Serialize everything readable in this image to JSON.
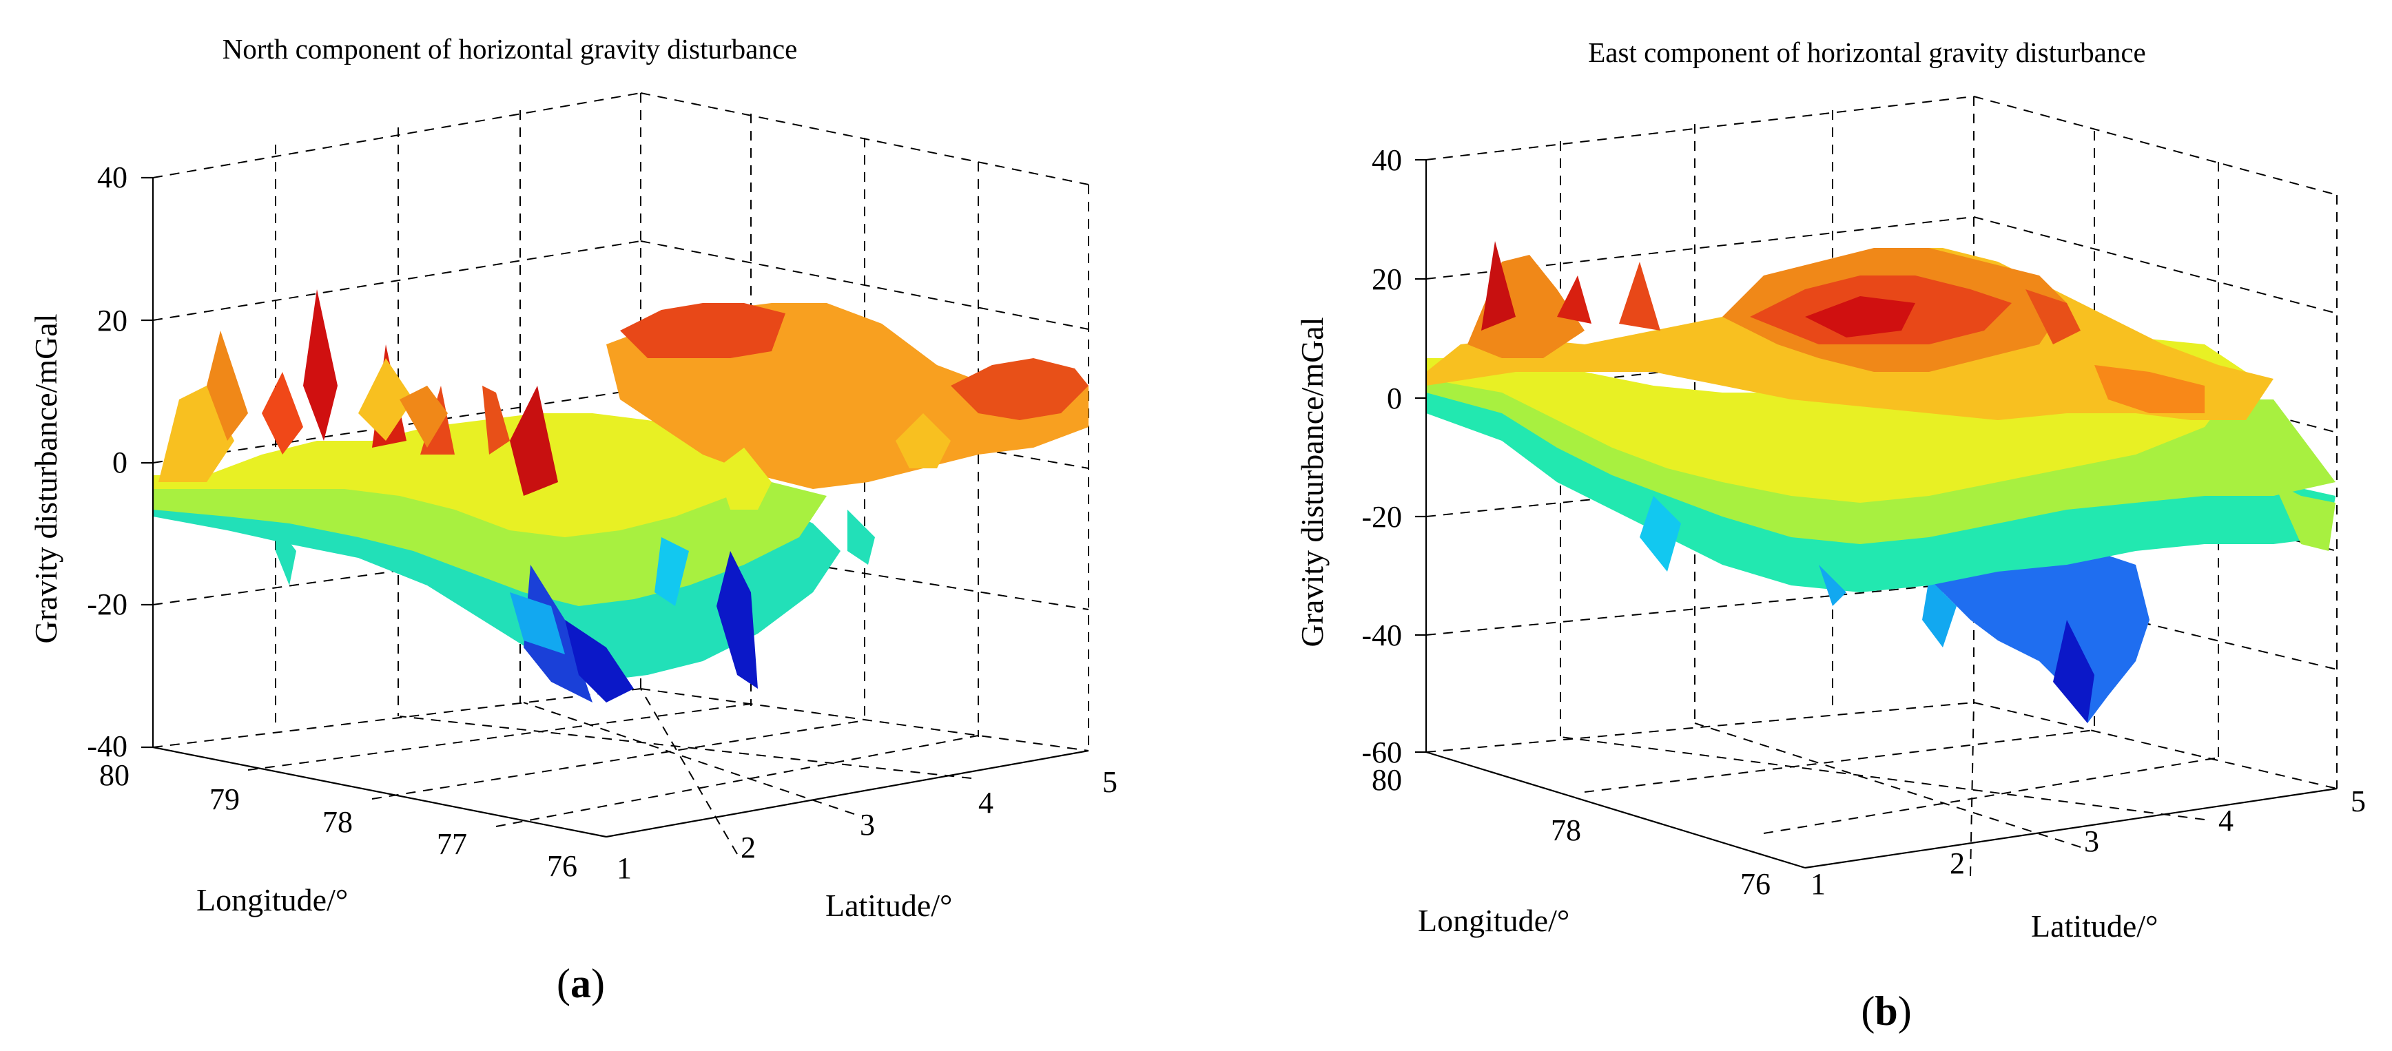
{
  "chart_data": [
    {
      "type": "surface",
      "title": "North component of horizontal gravity disturbance",
      "zlabel": "Gravity disturbance/mGal",
      "xlabel": "Longitude/°",
      "ylabel": "Latitude/°",
      "zlim": [
        -40,
        40
      ],
      "z_ticks": [
        "40",
        "20",
        "0",
        "-20",
        "-40"
      ],
      "x_ticks": [
        "80",
        "79",
        "78",
        "77",
        "76"
      ],
      "y_ticks": [
        "1",
        "2",
        "3",
        "4",
        "5"
      ],
      "panel_label": "a",
      "colormap": [
        "#0b18c8",
        "#1f6ef0",
        "#12c8f0",
        "#22e8b0",
        "#7af060",
        "#e8f020",
        "#f8c020",
        "#f88818",
        "#f04818",
        "#d01010"
      ]
    },
    {
      "type": "surface",
      "title": "East component of horizontal gravity disturbance",
      "zlabel": "Gravity disturbance/mGal",
      "xlabel": "Longitude/°",
      "ylabel": "Latitude/°",
      "zlim": [
        -60,
        40
      ],
      "z_ticks": [
        "40",
        "20",
        "0",
        "-20",
        "-40",
        "-60"
      ],
      "x_ticks": [
        "80",
        "78",
        "76"
      ],
      "y_ticks": [
        "1",
        "2",
        "3",
        "4",
        "5"
      ],
      "panel_label": "b",
      "colormap": [
        "#0b18c8",
        "#1f6ef0",
        "#12c8f0",
        "#22e8b0",
        "#7af060",
        "#e8f020",
        "#f8c020",
        "#f88818",
        "#f04818",
        "#d01010"
      ]
    }
  ]
}
